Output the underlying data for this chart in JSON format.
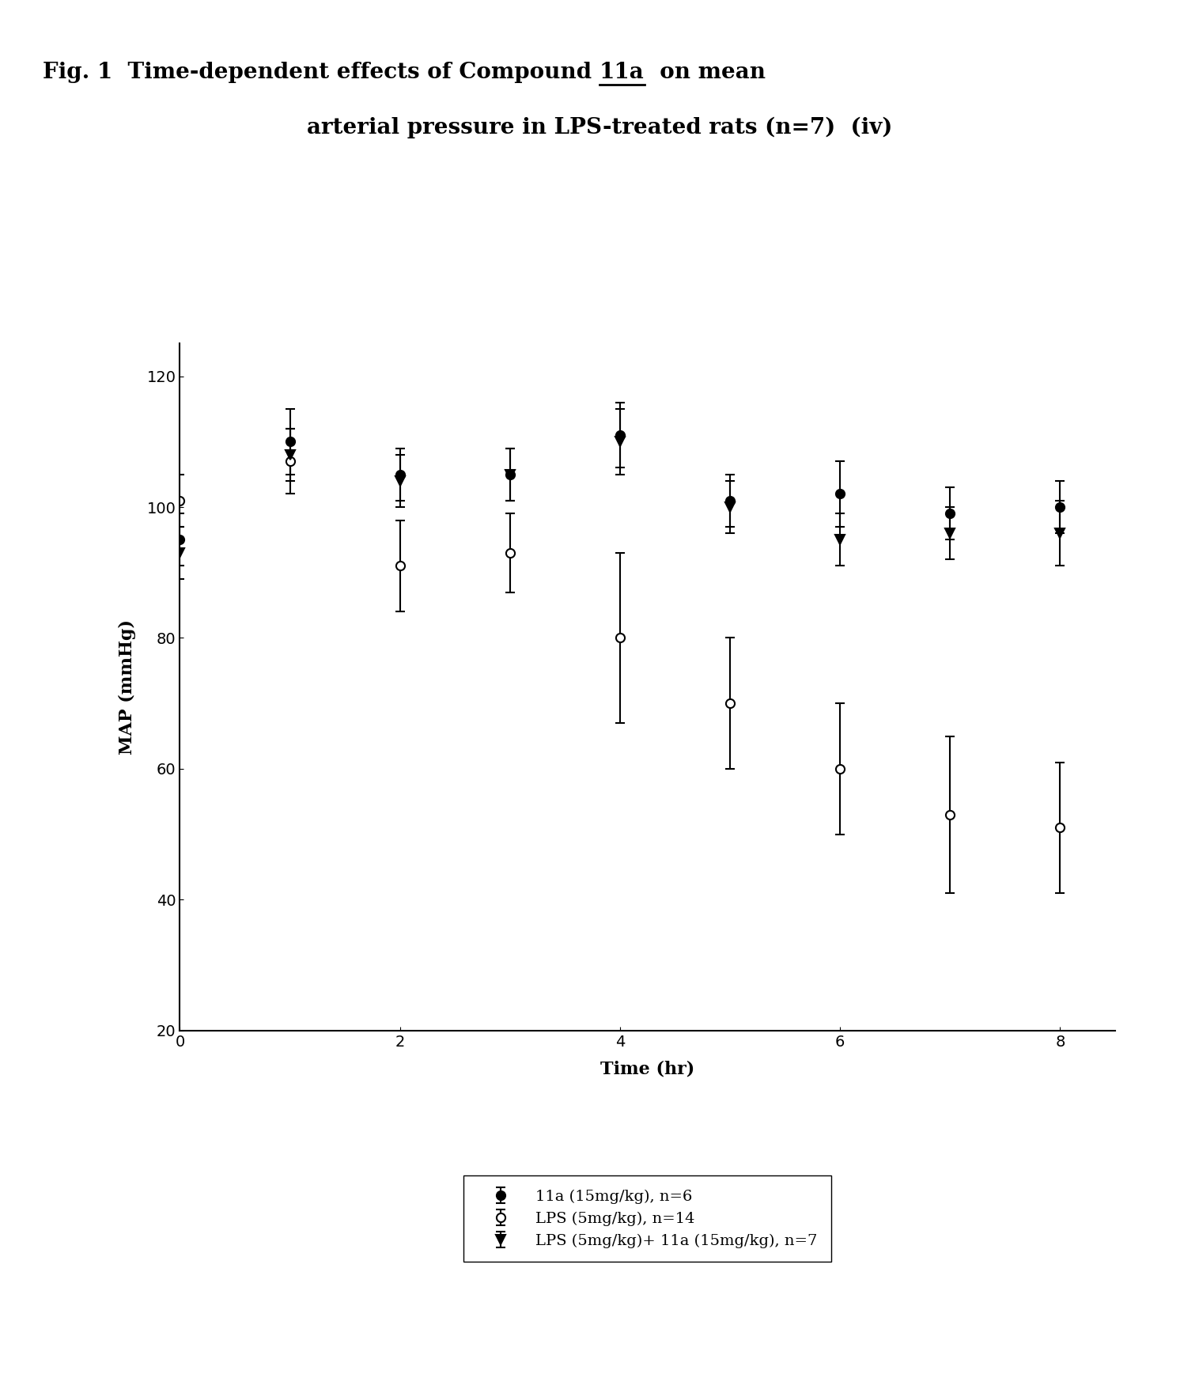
{
  "title_part1": "Fig. 1  Time-dependent effects of Compound ",
  "title_underlined": "11a",
  "title_part2": "  on mean",
  "title_line2": "arterial pressure in LPS-treated rats (n=7)  (iv)",
  "xlabel": "Time (hr)",
  "ylabel": "MAP (mmHg)",
  "xlim": [
    0,
    8.5
  ],
  "ylim": [
    20,
    125
  ],
  "yticks": [
    20,
    40,
    60,
    80,
    100,
    120
  ],
  "xticks": [
    0,
    2,
    4,
    6,
    8
  ],
  "series": [
    {
      "label": "11a (15mg/kg), n=6",
      "x": [
        0,
        1,
        2,
        3,
        4,
        5,
        6,
        7,
        8
      ],
      "y": [
        95,
        110,
        105,
        105,
        111,
        101,
        102,
        99,
        100
      ],
      "yerr": [
        4,
        5,
        4,
        4,
        5,
        4,
        5,
        4,
        4
      ],
      "marker": "o",
      "fillstyle": "full",
      "color": "black",
      "linestyle": "-"
    },
    {
      "label": "LPS (5mg/kg), n=14",
      "x": [
        0,
        1,
        2,
        3,
        4,
        5,
        6,
        7,
        8
      ],
      "y": [
        101,
        107,
        91,
        93,
        80,
        70,
        60,
        53,
        51
      ],
      "yerr": [
        4,
        5,
        7,
        6,
        13,
        10,
        10,
        12,
        10
      ],
      "marker": "o",
      "fillstyle": "none",
      "color": "black",
      "linestyle": "-"
    },
    {
      "label": "LPS (5mg/kg)+ 11a (15mg/kg), n=7",
      "x": [
        0,
        1,
        2,
        3,
        4,
        5,
        6,
        7,
        8
      ],
      "y": [
        93,
        108,
        104,
        105,
        110,
        100,
        95,
        96,
        96
      ],
      "yerr": [
        4,
        4,
        4,
        4,
        5,
        4,
        4,
        4,
        5
      ],
      "marker": "v",
      "fillstyle": "full",
      "color": "black",
      "linestyle": "-"
    }
  ],
  "background_color": "#ffffff",
  "legend_fontsize": 14,
  "axis_fontsize": 16,
  "title_fontsize": 20
}
